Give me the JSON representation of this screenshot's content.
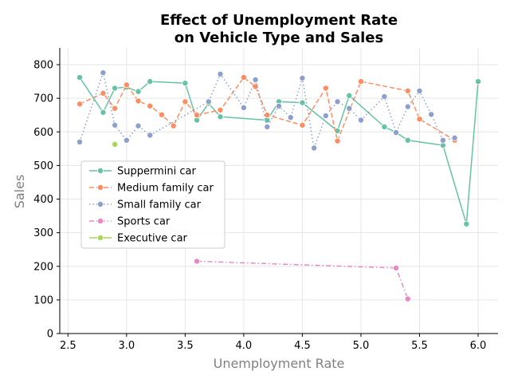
{
  "chart_data": {
    "type": "line",
    "title_lines": [
      "Effect of Unemployment Rate",
      "on Vehicle Type and Sales"
    ],
    "xlabel": "Unemployment Rate",
    "ylabel": "Sales",
    "xlim": [
      2.43,
      6.17
    ],
    "ylim": [
      0,
      850
    ],
    "xticks": [
      2.5,
      3.0,
      3.5,
      4.0,
      4.5,
      5.0,
      5.5,
      6.0
    ],
    "xtick_labels": [
      "2.5",
      "3.0",
      "3.5",
      "4.0",
      "4.5",
      "5.0",
      "5.5",
      "6.0"
    ],
    "yticks": [
      0,
      100,
      200,
      300,
      400,
      500,
      600,
      700,
      800
    ],
    "ytick_labels": [
      "0",
      "100",
      "200",
      "300",
      "400",
      "500",
      "600",
      "700",
      "800"
    ],
    "grid": true,
    "legend_position": "center-left",
    "series": [
      {
        "name": "Suppermini car",
        "color": "#66c2a5",
        "dash": "solid",
        "x": [
          2.6,
          2.8,
          2.9,
          3.0,
          3.1,
          3.2,
          3.5,
          3.6,
          3.7,
          3.8,
          4.2,
          4.3,
          4.5,
          4.8,
          4.9,
          5.2,
          5.3,
          5.4,
          5.7,
          5.9,
          6.0
        ],
        "y": [
          762,
          658,
          730,
          733,
          720,
          750,
          745,
          635,
          685,
          645,
          635,
          690,
          687,
          603,
          708,
          615,
          598,
          575,
          560,
          326,
          750
        ]
      },
      {
        "name": "Medium family car",
        "color": "#fc8d62",
        "dash": "dashed",
        "x": [
          2.6,
          2.8,
          2.9,
          3.0,
          3.1,
          3.2,
          3.3,
          3.4,
          3.5,
          3.6,
          3.8,
          4.0,
          4.1,
          4.2,
          4.5,
          4.7,
          4.8,
          5.0,
          5.4,
          5.5,
          5.8
        ],
        "y": [
          683,
          715,
          670,
          740,
          692,
          677,
          651,
          618,
          690,
          650,
          665,
          762,
          735,
          650,
          620,
          730,
          573,
          750,
          722,
          638,
          575
        ]
      },
      {
        "name": "Small family car",
        "color": "#8da0cb",
        "dash": "dotted",
        "x": [
          2.6,
          2.8,
          2.9,
          3.0,
          3.1,
          3.2,
          3.7,
          3.8,
          4.0,
          4.1,
          4.2,
          4.3,
          4.4,
          4.5,
          4.6,
          4.7,
          4.8,
          4.9,
          5.0,
          5.2,
          5.3,
          5.4,
          5.5,
          5.6,
          5.7,
          5.8
        ],
        "y": [
          570,
          776,
          620,
          575,
          618,
          590,
          690,
          772,
          672,
          755,
          615,
          677,
          643,
          760,
          552,
          648,
          690,
          670,
          635,
          705,
          598,
          675,
          722,
          652,
          575,
          582
        ]
      },
      {
        "name": "Sports car",
        "color": "#e78ac3",
        "dash": "dashdot",
        "x": [
          3.6,
          5.3,
          5.4
        ],
        "y": [
          215,
          195,
          103
        ]
      },
      {
        "name": "Executive car",
        "color": "#a6d854",
        "dash": "solid",
        "x": [
          2.9
        ],
        "y": [
          563
        ]
      }
    ]
  }
}
